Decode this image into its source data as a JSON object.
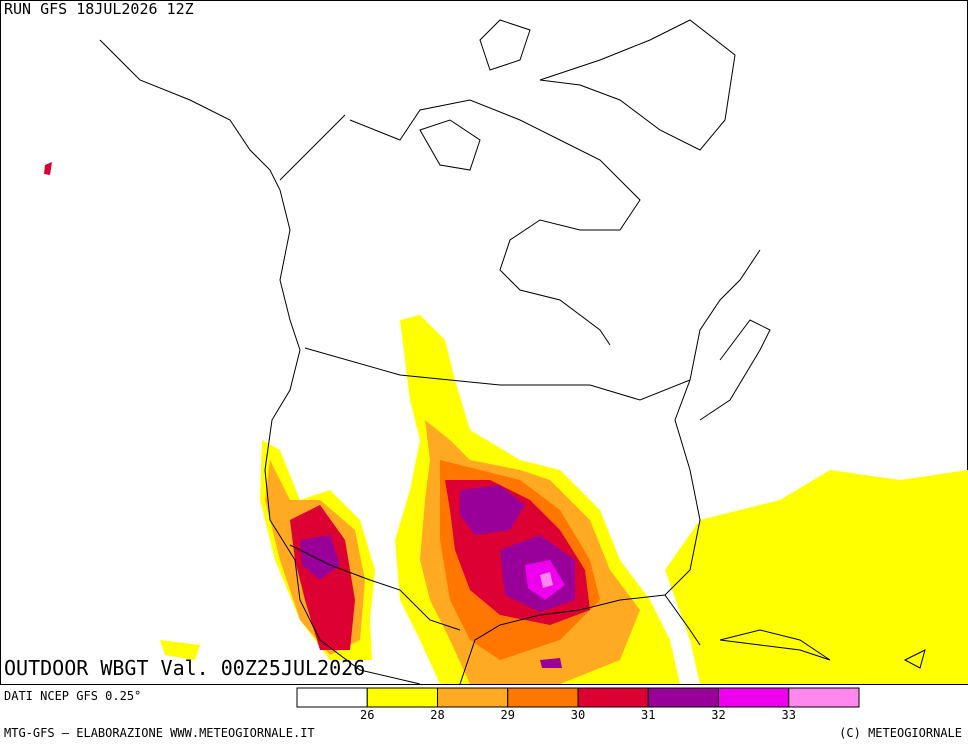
{
  "header": {
    "run": "RUN GFS 18JUL2026 12Z"
  },
  "map": {
    "title": "OUTDOOR WBGT Val. 00Z25JUL2026"
  },
  "source": "DATI NCEP GFS 0.25°",
  "legend": {
    "labels": [
      26,
      28,
      29,
      30,
      31,
      32,
      33
    ],
    "colors": [
      "#ffffff",
      "#ffff00",
      "#ffaa22",
      "#ff7700",
      "#dd0033",
      "#990099",
      "#ee00ee",
      "#ff88ee"
    ]
  },
  "footer": {
    "left": "MTG-GFS — ELABORAZIONE WWW.METEOGIORNALE.IT",
    "right": "(C) METEOGIORNALE"
  }
}
